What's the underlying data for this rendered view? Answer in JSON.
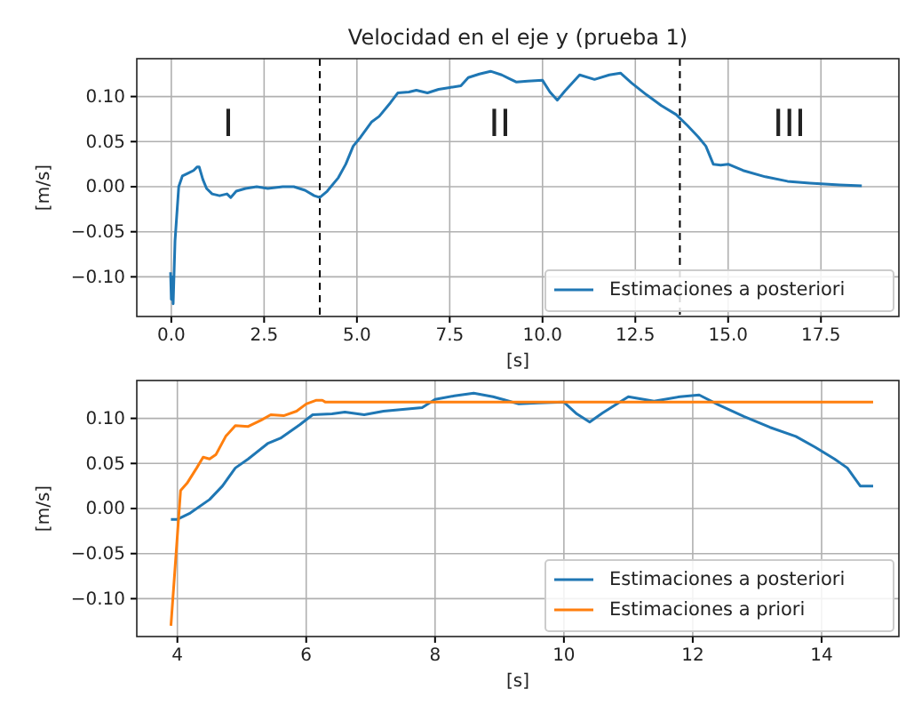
{
  "chart_data": [
    {
      "type": "line",
      "title": "Velocidad en el eje y (prueba 1)",
      "xlabel": "[s]",
      "ylabel": "[m/s]",
      "x": [
        -0.02,
        0.0,
        0.03,
        0.05,
        0.1,
        0.2,
        0.3,
        0.45,
        0.6,
        0.7,
        0.75,
        0.85,
        0.95,
        1.1,
        1.3,
        1.5,
        1.6,
        1.75,
        2.0,
        2.3,
        2.6,
        3.0,
        3.3,
        3.6,
        3.85,
        4.0,
        4.2,
        4.5,
        4.7,
        4.9,
        5.1,
        5.4,
        5.6,
        5.9,
        6.1,
        6.4,
        6.6,
        6.9,
        7.2,
        7.5,
        7.8,
        8.0,
        8.3,
        8.6,
        8.9,
        9.1,
        9.3,
        9.6,
        10.0,
        10.2,
        10.4,
        10.6,
        11.0,
        11.4,
        11.8,
        12.1,
        12.4,
        12.8,
        13.2,
        13.6,
        13.9,
        14.2,
        14.4,
        14.6,
        14.8,
        15.0,
        15.4,
        16.0,
        16.6,
        17.2,
        18.0,
        18.6
      ],
      "series": [
        {
          "name": "Estimaciones a posteriori",
          "color": "#1f77b4",
          "values": [
            -0.095,
            -0.125,
            -0.1,
            -0.13,
            -0.06,
            0.0,
            0.012,
            0.015,
            0.018,
            0.022,
            0.022,
            0.008,
            -0.002,
            -0.008,
            -0.01,
            -0.008,
            -0.012,
            -0.005,
            -0.002,
            0.0,
            -0.002,
            0.0,
            0.0,
            -0.004,
            -0.01,
            -0.012,
            -0.005,
            0.01,
            0.025,
            0.045,
            0.055,
            0.072,
            0.078,
            0.093,
            0.104,
            0.105,
            0.107,
            0.104,
            0.108,
            0.11,
            0.112,
            0.121,
            0.125,
            0.128,
            0.124,
            0.12,
            0.116,
            0.117,
            0.118,
            0.105,
            0.096,
            0.106,
            0.124,
            0.119,
            0.124,
            0.126,
            0.115,
            0.102,
            0.09,
            0.08,
            0.068,
            0.055,
            0.045,
            0.025,
            0.024,
            0.025,
            0.018,
            0.011,
            0.006,
            0.004,
            0.002,
            0.001
          ]
        }
      ],
      "xlim": [
        -0.93,
        19.6
      ],
      "xticks": [
        {
          "value": 0,
          "label": "0.0"
        },
        {
          "value": 2.5,
          "label": "2.5"
        },
        {
          "value": 5,
          "label": "5.0"
        },
        {
          "value": 7.5,
          "label": "7.5"
        },
        {
          "value": 10,
          "label": "10.0"
        },
        {
          "value": 12.5,
          "label": "12.5"
        },
        {
          "value": 15,
          "label": "15.0"
        },
        {
          "value": 17.5,
          "label": "17.5"
        }
      ],
      "ylim": [
        -0.144,
        0.142
      ],
      "yticks": [
        {
          "value": -0.1,
          "label": "−0.10"
        },
        {
          "value": -0.05,
          "label": "−0.05"
        },
        {
          "value": 0,
          "label": "0.00"
        },
        {
          "value": 0.05,
          "label": "0.05"
        },
        {
          "value": 0.1,
          "label": "0.10"
        }
      ],
      "ref_lines": [
        {
          "axis": "x",
          "value": 4.0,
          "line_style": "dashed",
          "color": "#000000"
        },
        {
          "axis": "x",
          "value": 13.7,
          "line_style": "dashed",
          "color": "#000000"
        }
      ],
      "annotations": [
        "I",
        "II",
        "III"
      ],
      "grid": true,
      "legend": "bottom right"
    },
    {
      "type": "line",
      "xlabel": "[s]",
      "ylabel": "[m/s]",
      "series": [
        {
          "name": "Estimaciones a posteriori",
          "color": "#1f77b4",
          "x": [
            3.9,
            4.0,
            4.2,
            4.5,
            4.7,
            4.9,
            5.1,
            5.4,
            5.6,
            5.9,
            6.1,
            6.4,
            6.6,
            6.9,
            7.2,
            7.5,
            7.8,
            8.0,
            8.3,
            8.6,
            8.9,
            9.1,
            9.3,
            9.6,
            10.0,
            10.2,
            10.4,
            10.6,
            11.0,
            11.4,
            11.8,
            12.1,
            12.4,
            12.8,
            13.2,
            13.6,
            13.9,
            14.2,
            14.4,
            14.6,
            14.8
          ],
          "values": [
            -0.012,
            -0.012,
            -0.005,
            0.01,
            0.025,
            0.045,
            0.055,
            0.072,
            0.078,
            0.093,
            0.104,
            0.105,
            0.107,
            0.104,
            0.108,
            0.11,
            0.112,
            0.121,
            0.125,
            0.128,
            0.124,
            0.12,
            0.116,
            0.117,
            0.118,
            0.105,
            0.096,
            0.106,
            0.124,
            0.119,
            0.124,
            0.126,
            0.115,
            0.102,
            0.09,
            0.08,
            0.068,
            0.055,
            0.045,
            0.025,
            0.025
          ]
        },
        {
          "name": "Estimaciones a priori",
          "color": "#ff7f0e",
          "x": [
            3.9,
            4.05,
            4.15,
            4.3,
            4.4,
            4.5,
            4.6,
            4.75,
            4.9,
            5.1,
            5.3,
            5.45,
            5.65,
            5.85,
            6.0,
            6.15,
            6.25,
            6.3,
            14.8
          ],
          "values": [
            -0.13,
            0.02,
            0.028,
            0.045,
            0.057,
            0.055,
            0.06,
            0.08,
            0.092,
            0.091,
            0.098,
            0.104,
            0.103,
            0.108,
            0.116,
            0.12,
            0.12,
            0.118,
            0.118
          ]
        }
      ],
      "xlim": [
        3.37,
        15.2
      ],
      "xticks": [
        4,
        6,
        8,
        10,
        12,
        14
      ],
      "ylim": [
        -0.142,
        0.142
      ],
      "yticks": [
        {
          "value": -0.1,
          "label": "−0.10"
        },
        {
          "value": -0.05,
          "label": "−0.05"
        },
        {
          "value": 0,
          "label": "0.00"
        },
        {
          "value": 0.05,
          "label": "0.05"
        },
        {
          "value": 0.1,
          "label": "0.10"
        }
      ],
      "grid": true,
      "legend": "bottom right"
    }
  ]
}
